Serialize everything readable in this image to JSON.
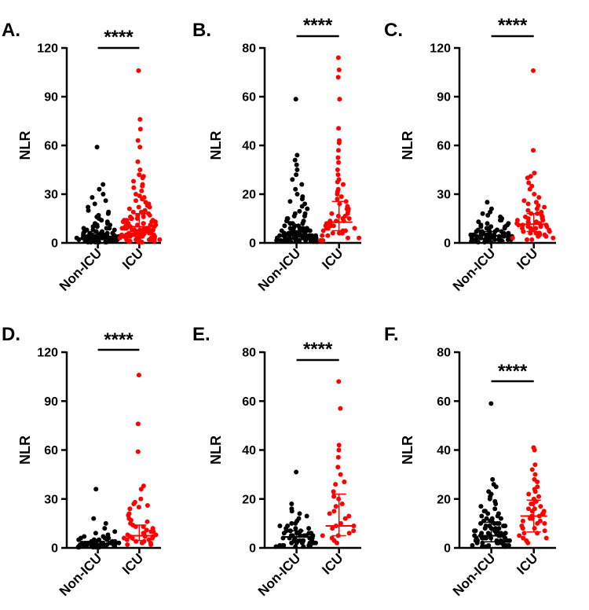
{
  "colors": {
    "non_icu": "#000000",
    "icu": "#ff0000"
  },
  "chart_data": [
    {
      "type": "scatter",
      "panel": "A.",
      "ylabel": "NLR",
      "ylim": [
        0,
        120
      ],
      "yticks": [
        0,
        30,
        60,
        90,
        120
      ],
      "categories": [
        "Non-ICU",
        "ICU"
      ],
      "significance": "****",
      "series": [
        {
          "name": "Non-ICU",
          "median": 4,
          "q1": 2,
          "q3": 6,
          "values": [
            59,
            36,
            33,
            30,
            28,
            26,
            24,
            22,
            20,
            19,
            18,
            17,
            16,
            15,
            14,
            13,
            12,
            12,
            11,
            11,
            10,
            10,
            9,
            9,
            9,
            8,
            8,
            8,
            8,
            7,
            7,
            7,
            7,
            7,
            6,
            6,
            6,
            6,
            6,
            6,
            5,
            5,
            5,
            5,
            5,
            5,
            5,
            5,
            4,
            4,
            4,
            4,
            4,
            4,
            4,
            4,
            4,
            4,
            3,
            3,
            3,
            3,
            3,
            3,
            3,
            3,
            3,
            3,
            3,
            3,
            2,
            2,
            2,
            2,
            2,
            2,
            2,
            2,
            2,
            2,
            2,
            2,
            2,
            1,
            1,
            1,
            1,
            1,
            1,
            1,
            1,
            1,
            1,
            1,
            0.5,
            0.5,
            0.5,
            0.5,
            0.5,
            0.5
          ]
        },
        {
          "name": "ICU",
          "median": 10,
          "q1": 5,
          "q3": 18,
          "values": [
            106,
            76,
            70,
            63,
            59,
            50,
            45,
            42,
            41,
            40,
            38,
            36,
            35,
            34,
            32,
            30,
            29,
            28,
            27,
            26,
            25,
            24,
            23,
            22,
            22,
            21,
            20,
            20,
            19,
            19,
            18,
            18,
            17,
            17,
            16,
            16,
            15,
            15,
            15,
            14,
            14,
            14,
            13,
            13,
            13,
            12,
            12,
            12,
            12,
            11,
            11,
            11,
            11,
            10,
            10,
            10,
            10,
            10,
            9,
            9,
            9,
            9,
            9,
            8,
            8,
            8,
            8,
            8,
            8,
            7,
            7,
            7,
            7,
            7,
            7,
            6,
            6,
            6,
            6,
            6,
            6,
            5,
            5,
            5,
            5,
            5,
            5,
            5,
            4,
            4,
            4,
            4,
            4,
            4,
            3,
            3,
            3,
            3,
            3,
            3,
            2,
            2,
            2,
            2,
            2,
            1,
            1,
            1,
            1,
            1,
            0.5,
            0.5,
            0.5
          ]
        }
      ]
    },
    {
      "type": "scatter",
      "panel": "B.",
      "ylabel": "NLR",
      "ylim": [
        0,
        80
      ],
      "yticks": [
        0,
        20,
        40,
        60,
        80
      ],
      "categories": [
        "Non-ICU",
        "ICU"
      ],
      "significance": "****",
      "series": [
        {
          "name": "Non-ICU",
          "median": 3,
          "q1": 1.5,
          "q3": 5,
          "values": [
            59,
            36,
            34,
            32,
            30,
            28,
            26,
            24,
            22,
            20,
            19,
            18,
            17,
            16,
            15,
            14,
            13,
            12,
            12,
            11,
            11,
            10,
            10,
            9,
            9,
            9,
            8,
            8,
            8,
            8,
            7,
            7,
            7,
            7,
            6,
            6,
            6,
            6,
            6,
            6,
            5,
            5,
            5,
            5,
            5,
            5,
            5,
            4,
            4,
            4,
            4,
            4,
            4,
            4,
            4,
            4,
            3,
            3,
            3,
            3,
            3,
            3,
            3,
            3,
            3,
            3,
            3,
            2,
            2,
            2,
            2,
            2,
            2,
            2,
            2,
            2,
            2,
            2,
            2,
            1,
            1,
            1,
            1,
            1,
            1,
            1,
            1,
            1,
            1,
            0.5,
            0.5,
            0.5,
            0.5,
            0.5
          ]
        },
        {
          "name": "ICU",
          "median": 8.5,
          "q1": 5,
          "q3": 17,
          "values": [
            76,
            71,
            68,
            59,
            47,
            42,
            41,
            38,
            35,
            33,
            30,
            28,
            26,
            25,
            24,
            22,
            21,
            20,
            19,
            18,
            17,
            16,
            15,
            14,
            14,
            13,
            12,
            12,
            11,
            11,
            10,
            10,
            9,
            9,
            9,
            8,
            8,
            8,
            7,
            7,
            7,
            6,
            6,
            6,
            5,
            5,
            5,
            4,
            4,
            4,
            3,
            3,
            2,
            2,
            1,
            1
          ]
        }
      ]
    },
    {
      "type": "scatter",
      "panel": "C.",
      "ylabel": "NLR",
      "ylim": [
        0,
        120
      ],
      "yticks": [
        0,
        30,
        60,
        90,
        120
      ],
      "categories": [
        "Non-ICU",
        "ICU"
      ],
      "significance": "****",
      "series": [
        {
          "name": "Non-ICU",
          "median": 4.5,
          "q1": 2.5,
          "q3": 7,
          "values": [
            25,
            21,
            19,
            18,
            17,
            16,
            15,
            14,
            14,
            13,
            12,
            12,
            11,
            11,
            10,
            10,
            10,
            9,
            9,
            9,
            8,
            8,
            8,
            8,
            7,
            7,
            7,
            7,
            7,
            6,
            6,
            6,
            6,
            6,
            6,
            5,
            5,
            5,
            5,
            5,
            5,
            5,
            5,
            4,
            4,
            4,
            4,
            4,
            4,
            4,
            4,
            4,
            3,
            3,
            3,
            3,
            3,
            3,
            3,
            3,
            3,
            2,
            2,
            2,
            2,
            2,
            2,
            2,
            2,
            2,
            1,
            1,
            1,
            1,
            1,
            1,
            1,
            0.5,
            0.5,
            0.5
          ]
        },
        {
          "name": "ICU",
          "median": 11.5,
          "q1": 7,
          "q3": 18,
          "values": [
            106,
            57,
            43,
            41,
            40,
            37,
            35,
            33,
            30,
            28,
            26,
            25,
            24,
            23,
            22,
            21,
            20,
            19,
            18,
            18,
            17,
            16,
            16,
            15,
            15,
            14,
            14,
            13,
            13,
            12,
            12,
            12,
            11,
            11,
            11,
            10,
            10,
            10,
            9,
            9,
            9,
            8,
            8,
            8,
            7,
            7,
            7,
            6,
            6,
            6,
            5,
            5,
            4,
            4,
            3,
            3,
            2,
            2
          ]
        }
      ]
    },
    {
      "type": "scatter",
      "panel": "D.",
      "ylabel": "NLR",
      "ylim": [
        0,
        120
      ],
      "yticks": [
        0,
        30,
        60,
        90,
        120
      ],
      "categories": [
        "Non-ICU",
        "ICU"
      ],
      "significance": "****",
      "series": [
        {
          "name": "Non-ICU",
          "median": 2.5,
          "q1": 1.2,
          "q3": 4,
          "values": [
            36,
            18,
            15,
            12,
            10,
            9,
            8,
            7,
            7,
            6,
            6,
            6,
            5,
            5,
            5,
            5,
            4,
            4,
            4,
            4,
            4,
            3,
            3,
            3,
            3,
            3,
            3,
            3,
            3,
            2,
            2,
            2,
            2,
            2,
            2,
            2,
            2,
            2,
            2,
            1,
            1,
            1,
            1,
            1,
            1,
            1,
            1,
            0.5,
            0.5,
            0.5,
            0.5,
            0.5
          ]
        },
        {
          "name": "ICU",
          "median": 7.5,
          "q1": 4.5,
          "q3": 14,
          "values": [
            106,
            76,
            59,
            38,
            36,
            30,
            28,
            27,
            26,
            25,
            24,
            21,
            20,
            18,
            17,
            16,
            15,
            14,
            13,
            13,
            12,
            11,
            10,
            10,
            9,
            9,
            8,
            8,
            7,
            7,
            7,
            6,
            6,
            6,
            5,
            5,
            4,
            4,
            3,
            3,
            2,
            2
          ]
        }
      ]
    },
    {
      "type": "scatter",
      "panel": "E.",
      "ylabel": "NLR",
      "ylim": [
        0,
        80
      ],
      "yticks": [
        0,
        20,
        40,
        60,
        80
      ],
      "categories": [
        "Non-ICU",
        "ICU"
      ],
      "significance": "****",
      "series": [
        {
          "name": "Non-ICU",
          "median": 4.5,
          "q1": 2.5,
          "q3": 7,
          "values": [
            31,
            18,
            16,
            15,
            14,
            13,
            12,
            11,
            10,
            10,
            9,
            9,
            8,
            8,
            8,
            7,
            7,
            7,
            7,
            6,
            6,
            6,
            6,
            6,
            5,
            5,
            5,
            5,
            5,
            5,
            4,
            4,
            4,
            4,
            4,
            4,
            4,
            3,
            3,
            3,
            3,
            3,
            3,
            3,
            2,
            2,
            2,
            2,
            2,
            2,
            1,
            1,
            1,
            1,
            1,
            0.5,
            0.5,
            0.5
          ]
        },
        {
          "name": "ICU",
          "median": 9,
          "q1": 5,
          "q3": 22,
          "values": [
            68,
            57,
            42,
            40,
            37,
            33,
            30,
            27,
            26,
            23,
            21,
            20,
            18,
            17,
            15,
            14,
            13,
            12,
            10,
            9,
            9,
            8,
            7,
            6,
            5,
            5,
            4,
            3,
            2
          ]
        }
      ]
    },
    {
      "type": "scatter",
      "panel": "F.",
      "ylabel": "NLR",
      "ylim": [
        0,
        80
      ],
      "yticks": [
        0,
        20,
        40,
        60,
        80
      ],
      "categories": [
        "Non-ICU",
        "ICU"
      ],
      "significance": "****",
      "series": [
        {
          "name": "Non-ICU",
          "median": 5,
          "q1": 2.5,
          "q3": 10.5,
          "values": [
            59,
            28,
            26,
            25,
            23,
            22,
            21,
            20,
            19,
            18,
            17,
            16,
            15,
            15,
            14,
            14,
            13,
            13,
            12,
            12,
            12,
            11,
            11,
            11,
            10,
            10,
            10,
            10,
            9,
            9,
            9,
            9,
            8,
            8,
            8,
            8,
            7,
            7,
            7,
            7,
            7,
            6,
            6,
            6,
            6,
            6,
            6,
            5,
            5,
            5,
            5,
            5,
            5,
            5,
            4,
            4,
            4,
            4,
            4,
            4,
            4,
            3,
            3,
            3,
            3,
            3,
            3,
            3,
            2,
            2,
            2,
            2,
            2,
            2,
            1,
            1,
            1,
            1,
            1,
            0.5,
            0.5,
            0.5
          ]
        },
        {
          "name": "ICU",
          "median": 13,
          "q1": 6.5,
          "q3": 19.5,
          "values": [
            41,
            40,
            34,
            32,
            30,
            28,
            27,
            25,
            24,
            23,
            22,
            21,
            20,
            19,
            18,
            18,
            17,
            16,
            16,
            15,
            15,
            14,
            14,
            13,
            13,
            12,
            12,
            11,
            11,
            10,
            10,
            9,
            8,
            8,
            7,
            6,
            6,
            5,
            4,
            4,
            3,
            2
          ]
        }
      ]
    }
  ]
}
